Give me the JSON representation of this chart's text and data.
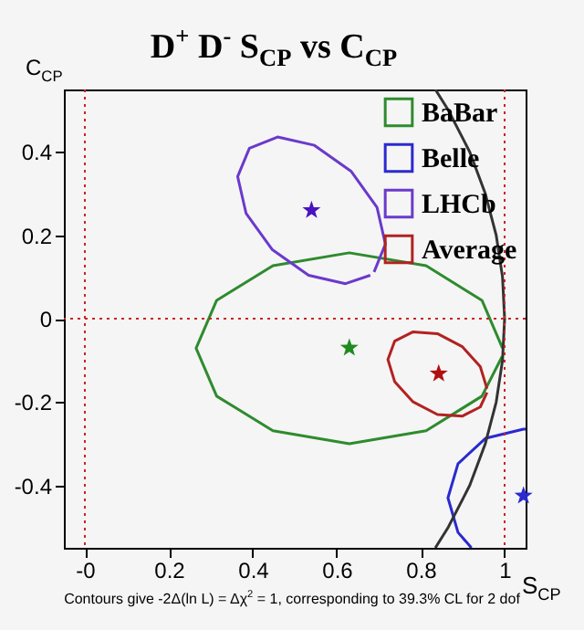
{
  "chart_data": {
    "type": "line",
    "title": "D$^{+}$ D$^{-}$ S$_{CP}$ vs C$_{CP}$",
    "xlabel": "S$_{CP}$",
    "ylabel": "C$_{CP}$",
    "annotations": [
      "Contours give -2Δ(ln L) = Δχ$^{2}$ = 1, corresponding to 39.3% CL for 2 dof"
    ],
    "xlim": [
      -0.05,
      1.05
    ],
    "ylim": [
      -0.55,
      0.55
    ],
    "xticks": [
      {
        "value": 0,
        "label": "-0"
      },
      0.2,
      0.4,
      0.6,
      0.8,
      1
    ],
    "yticks": [
      -0.4,
      -0.2,
      0,
      0.2,
      0.4
    ],
    "grid": false,
    "legend": "top right",
    "line_style": "solid",
    "ref_lines": [
      {
        "axis": "x",
        "value": 0,
        "color": "#cc2222",
        "line_style": "dotted"
      },
      {
        "axis": "x",
        "value": 1,
        "color": "#cc2222",
        "line_style": "dotted"
      },
      {
        "axis": "y",
        "value": 0,
        "color": "#cc2222",
        "line_style": "dotted"
      }
    ],
    "series": [
      {
        "name": "BaBar",
        "color": "#2e8b2e",
        "x": [
          0.995,
          0.946,
          0.813,
          0.63,
          0.448,
          0.314,
          0.265,
          0.314,
          0.448,
          0.63,
          0.813,
          0.946,
          0.994
        ],
        "values": [
          -0.071,
          0.044,
          0.127,
          0.158,
          0.127,
          0.044,
          -0.071,
          -0.186,
          -0.269,
          -0.3,
          -0.269,
          -0.186,
          -0.091
        ]
      },
      {
        "name": "Belle",
        "color": "#2a2ad0",
        "x": [
          1.05,
          1.045,
          0.955,
          0.889,
          0.865,
          0.889,
          0.921
        ],
        "values": [
          -0.265,
          -0.265,
          -0.287,
          -0.348,
          -0.43,
          -0.513,
          -0.55
        ]
      },
      {
        "name": "LHCb",
        "color": "#6a3acb",
        "x": [
          0.689,
          0.716,
          0.696,
          0.634,
          0.547,
          0.459,
          0.392,
          0.364,
          0.384,
          0.446,
          0.533,
          0.621,
          0.68
        ],
        "values": [
          0.112,
          0.179,
          0.267,
          0.354,
          0.416,
          0.436,
          0.409,
          0.341,
          0.253,
          0.166,
          0.104,
          0.084,
          0.104
        ]
      },
      {
        "name": "Average",
        "color": "#b22222",
        "x": [
          0.958,
          0.942,
          0.899,
          0.84,
          0.781,
          0.738,
          0.722,
          0.738,
          0.781,
          0.84,
          0.899,
          0.942,
          0.958
        ],
        "values": [
          -0.168,
          -0.115,
          -0.067,
          -0.036,
          -0.032,
          -0.054,
          -0.098,
          -0.151,
          -0.199,
          -0.23,
          -0.234,
          -0.212,
          -0.177
        ]
      },
      {
        "color": "#333333",
        "x": [
          0.835,
          0.866,
          0.917,
          0.954,
          0.98,
          0.995,
          1,
          0.995,
          0.98,
          0.954,
          0.917,
          0.866,
          0.835
        ],
        "values": [
          0.55,
          0.5,
          0.4,
          0.3,
          0.2,
          0.1,
          0,
          -0.1,
          -0.2,
          -0.3,
          -0.4,
          -0.5,
          -0.55
        ]
      },
      {
        "type": "scatter",
        "marker": "star",
        "x": [
          0.63,
          1.045,
          0.54,
          0.843
        ],
        "values": [
          -0.07,
          -0.425,
          0.26,
          -0.132
        ],
        "colors": [
          "#1e8b1e",
          "#2a2ad0",
          "#4a12c0",
          "#b01010"
        ]
      }
    ]
  }
}
